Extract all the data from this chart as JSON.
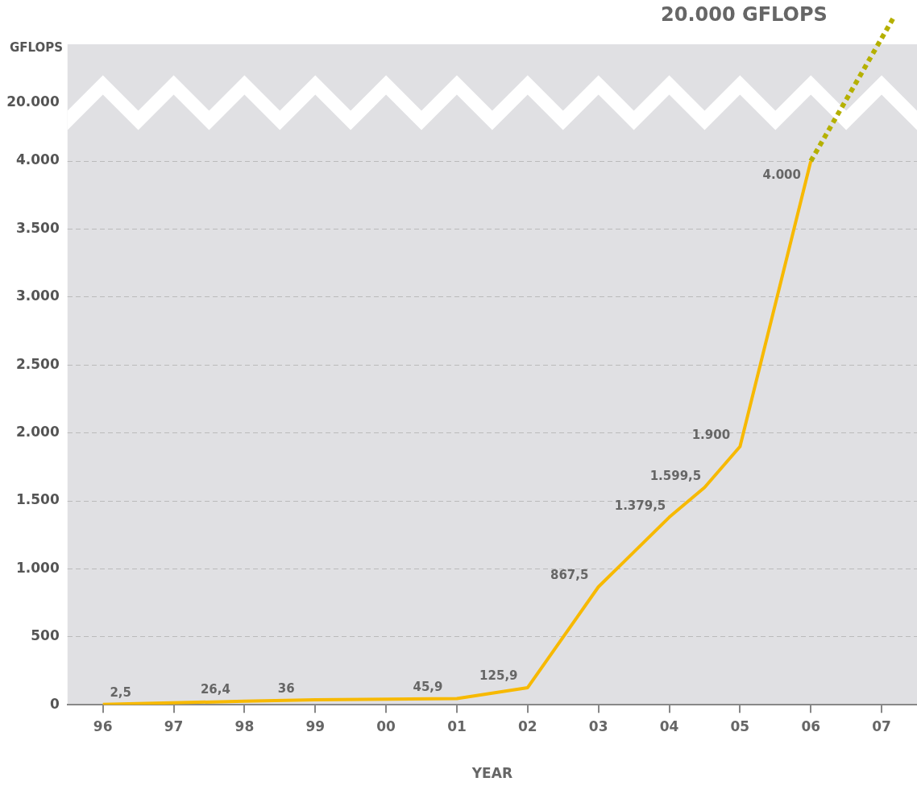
{
  "chart_data": {
    "type": "line",
    "xlabel": "YEAR",
    "x": [
      1996,
      1998,
      1999,
      2001,
      2002,
      2003,
      2004,
      2004.5,
      2005,
      2006
    ],
    "series": [
      {
        "color": "#f7b900",
        "values": [
          2.5,
          26.4,
          36,
          45.9,
          125.9,
          867.5,
          1379.5,
          1599.5,
          1900,
          4000
        ],
        "value_labels": [
          "2,5",
          "26,4",
          "36",
          "45,9",
          "125,9",
          "867,5",
          "1.379,5",
          "1.599,5",
          "1.900",
          "4.000"
        ]
      }
    ],
    "xlim": [
      1995.5,
      2007.5
    ],
    "xticks": [
      {
        "value": 1996,
        "label": "96"
      },
      {
        "value": 1997,
        "label": "97"
      },
      {
        "value": 1998,
        "label": "98"
      },
      {
        "value": 1999,
        "label": "99"
      },
      {
        "value": 2000,
        "label": "00"
      },
      {
        "value": 2001,
        "label": "01"
      },
      {
        "value": 2002,
        "label": "02"
      },
      {
        "value": 2003,
        "label": "03"
      },
      {
        "value": 2004,
        "label": "04"
      },
      {
        "value": 2005,
        "label": "05"
      },
      {
        "value": 2006,
        "label": "06"
      },
      {
        "value": 2007,
        "label": "07"
      }
    ],
    "ylim": [
      0,
      4000
    ],
    "yticks": [
      0,
      500,
      {
        "value": 1000,
        "label": "1.000"
      },
      {
        "value": 1500,
        "label": "1.500"
      },
      {
        "value": 2000,
        "label": "2.000"
      },
      {
        "value": 2500,
        "label": "2.500"
      },
      {
        "value": 3000,
        "label": "3.000"
      },
      {
        "value": 3500,
        "label": "3.500"
      },
      {
        "value": 4000,
        "label": "4.000"
      }
    ],
    "grid": "y",
    "marker": "none",
    "line_style": "solid",
    "annotations": [
      "GFLOPS",
      "20.000",
      "20.000 GFLOPS"
    ]
  }
}
